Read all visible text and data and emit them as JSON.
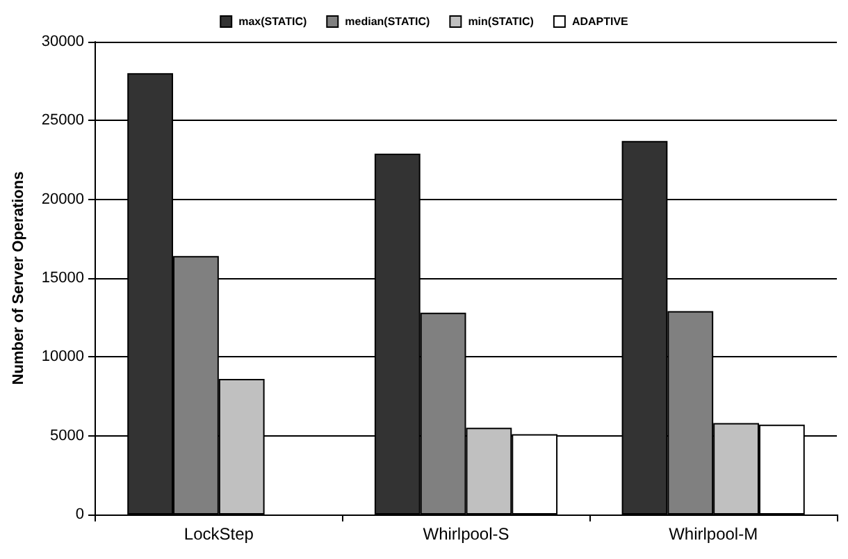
{
  "chart_data": {
    "type": "bar",
    "ylabel": "Number of Server Operations",
    "categories": [
      "LockStep",
      "Whirlpool-S",
      "Whirlpool-M"
    ],
    "series": [
      {
        "name": "max(STATIC)",
        "color": "#333333",
        "values": [
          28000,
          22900,
          23700
        ]
      },
      {
        "name": "median(STATIC)",
        "color": "#808080",
        "values": [
          16400,
          12800,
          12900
        ]
      },
      {
        "name": "min(STATIC)",
        "color": "#c0c0c0",
        "values": [
          8600,
          5500,
          5800
        ]
      },
      {
        "name": "ADAPTIVE",
        "color": "#ffffff",
        "values": [
          null,
          5100,
          5700
        ]
      }
    ],
    "ylim": [
      0,
      30000
    ],
    "yticks": [
      0,
      5000,
      10000,
      15000,
      20000,
      25000,
      30000
    ],
    "grid": "y",
    "legend": "top"
  }
}
